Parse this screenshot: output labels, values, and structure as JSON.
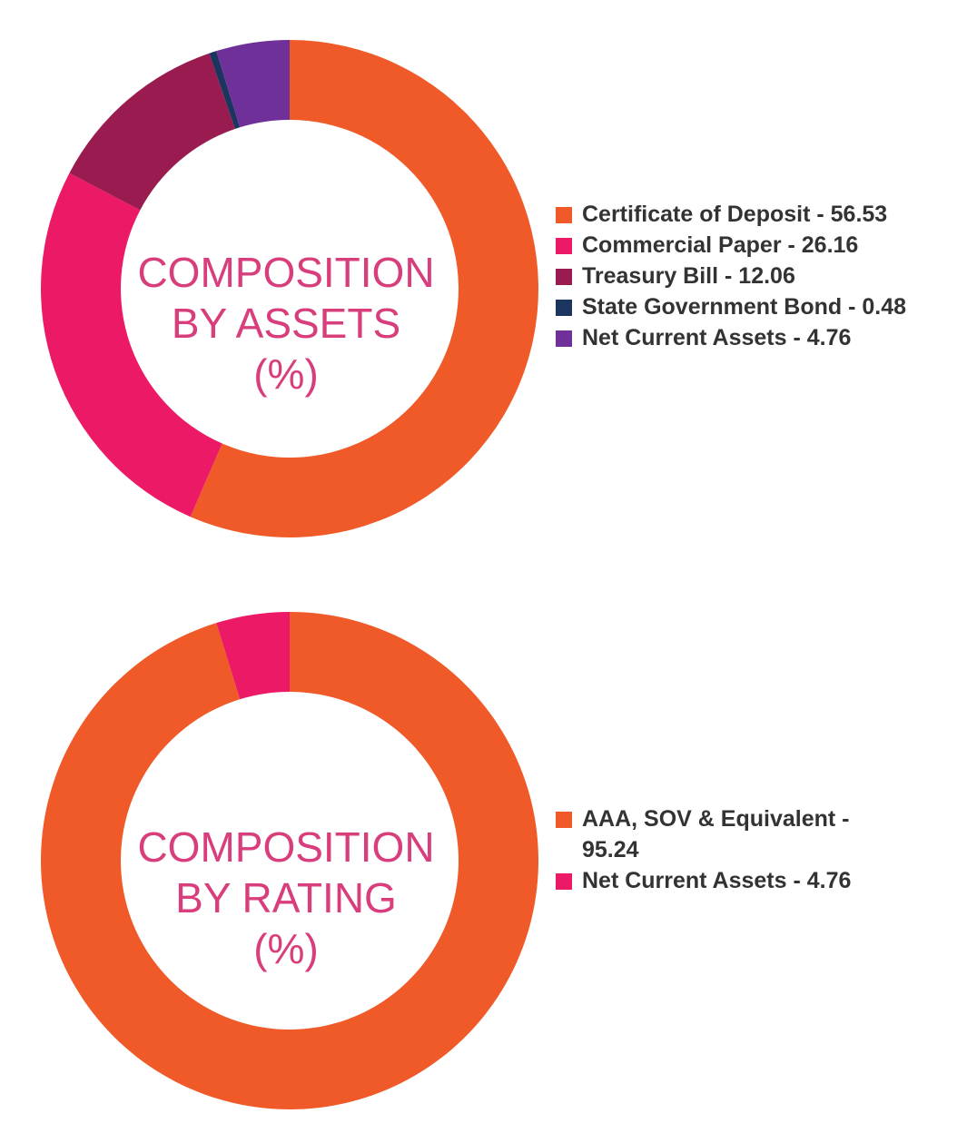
{
  "chart_data": [
    {
      "type": "pie",
      "title_lines": [
        "COMPOSITION",
        "BY ASSETS",
        "(%)"
      ],
      "categories": [
        "Certificate of Deposit",
        "Commercial Paper",
        "Treasury Bill",
        "State Government Bond",
        "Net Current Assets"
      ],
      "values": [
        56.53,
        26.16,
        12.06,
        0.48,
        4.76
      ],
      "legend_labels": [
        "Certificate of Deposit - 56.53",
        "Commercial Paper - 26.16",
        "Treasury Bill - 12.06",
        "State Government Bond - 0.48",
        "Net Current Assets - 4.76"
      ],
      "colors": [
        "#f05a28",
        "#ec1966",
        "#9a1b4f",
        "#1c355e",
        "#70309a"
      ],
      "legend_position": "right"
    },
    {
      "type": "pie",
      "title_lines": [
        "COMPOSITION",
        "BY RATING",
        "(%)"
      ],
      "categories": [
        "AAA, SOV & Equivalent",
        "Net Current Assets"
      ],
      "values": [
        95.24,
        4.76
      ],
      "legend_labels": [
        "AAA, SOV & Equivalent - 95.24",
        "Net Current Assets - 4.76"
      ],
      "colors": [
        "#f05a28",
        "#ec1966"
      ],
      "legend_position": "right"
    }
  ]
}
